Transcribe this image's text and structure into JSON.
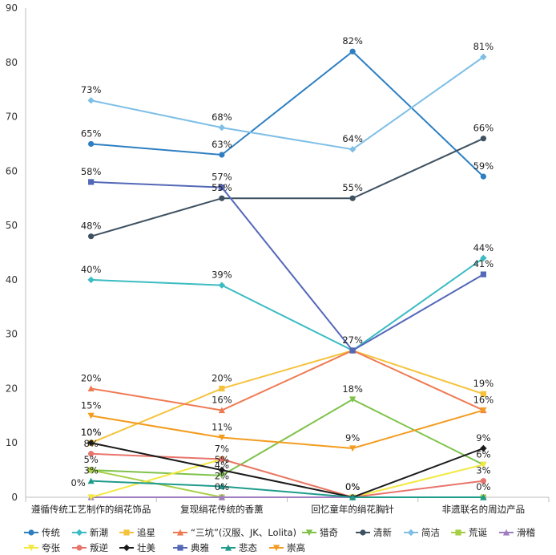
{
  "chart_data": {
    "type": "line",
    "title": "",
    "xlabel": "",
    "ylabel": "",
    "ylim": [
      0,
      90
    ],
    "yticks": [
      0,
      10,
      20,
      30,
      40,
      50,
      60,
      70,
      80,
      90
    ],
    "grid": false,
    "legend_position": "bottom",
    "categories": [
      "遵循传统工艺制作的绢花饰品",
      "复现绢花传统的香薰",
      "回忆童年的绢花胸针",
      "非遗联名的周边产品"
    ],
    "series": [
      {
        "name": "传统",
        "color": "#2e7fc1",
        "marker": "circle",
        "values": [
          65,
          63,
          82,
          59
        ],
        "labels": [
          "65%",
          "63%",
          "82%",
          "59%"
        ]
      },
      {
        "name": "新潮",
        "color": "#3bbcc2",
        "marker": "diamond",
        "values": [
          40,
          39,
          27,
          44
        ],
        "labels": [
          "40%",
          "39%",
          "",
          "44%"
        ]
      },
      {
        "name": "追星",
        "color": "#f5c23c",
        "marker": "square",
        "values": [
          10,
          20,
          27,
          19
        ],
        "labels": [
          "10%",
          "20%",
          "",
          "19%"
        ]
      },
      {
        "name": "“三坑”(汉服、JK、Lolita)",
        "color": "#ee7a52",
        "marker": "triangle",
        "values": [
          20,
          16,
          27,
          16
        ],
        "labels": [
          "20%",
          "16%",
          "",
          "16%"
        ]
      },
      {
        "name": "猎奇",
        "color": "#7ec24a",
        "marker": "triangle-down",
        "values": [
          5,
          4,
          18,
          6
        ],
        "labels": [
          "5%",
          "4%",
          "18%",
          "6%"
        ]
      },
      {
        "name": "清新",
        "color": "#3e5160",
        "marker": "circle",
        "values": [
          48,
          55,
          55,
          66
        ],
        "labels": [
          "48%",
          "55%",
          "55%",
          "66%"
        ]
      },
      {
        "name": "简洁",
        "color": "#7fbfe6",
        "marker": "diamond",
        "values": [
          73,
          68,
          64,
          81
        ],
        "labels": [
          "73%",
          "68%",
          "64%",
          "81%"
        ]
      },
      {
        "name": "荒诞",
        "color": "#a6cf45",
        "marker": "square",
        "values": [
          5,
          0,
          0,
          0
        ],
        "labels": [
          "",
          "",
          "",
          ""
        ]
      },
      {
        "name": "滑稽",
        "color": "#a07cc0",
        "marker": "triangle",
        "values": [
          0,
          0,
          0,
          0
        ],
        "labels": [
          "",
          "",
          "",
          ""
        ]
      },
      {
        "name": "夸张",
        "color": "#f3e840",
        "marker": "triangle-down",
        "values": [
          0,
          7,
          0,
          6
        ],
        "labels": [
          "",
          "7%",
          "",
          ""
        ]
      },
      {
        "name": "叛逆",
        "color": "#e8746b",
        "marker": "circle",
        "values": [
          8,
          7,
          0,
          3
        ],
        "labels": [
          "8%",
          "",
          "",
          "3%"
        ]
      },
      {
        "name": "壮美",
        "color": "#1a1a1a",
        "marker": "diamond",
        "values": [
          10,
          5,
          0,
          9
        ],
        "labels": [
          "10%",
          "5%",
          "0%",
          "9%"
        ]
      },
      {
        "name": "典雅",
        "color": "#5468b8",
        "marker": "square",
        "values": [
          58,
          57,
          27,
          41
        ],
        "labels": [
          "58%",
          "57%",
          "27%",
          "41%"
        ]
      },
      {
        "name": "悲态",
        "color": "#1f9b8c",
        "marker": "triangle",
        "values": [
          3,
          2,
          0,
          0
        ],
        "labels": [
          "3%",
          "2%",
          "",
          "0%"
        ]
      },
      {
        "name": "崇高",
        "color": "#f39c1f",
        "marker": "triangle-down",
        "values": [
          15,
          11,
          9,
          16
        ],
        "labels": [
          "15%",
          "11%",
          "9%",
          ""
        ]
      }
    ],
    "extra_labels": [
      "0%",
      "0%",
      "0%"
    ]
  }
}
